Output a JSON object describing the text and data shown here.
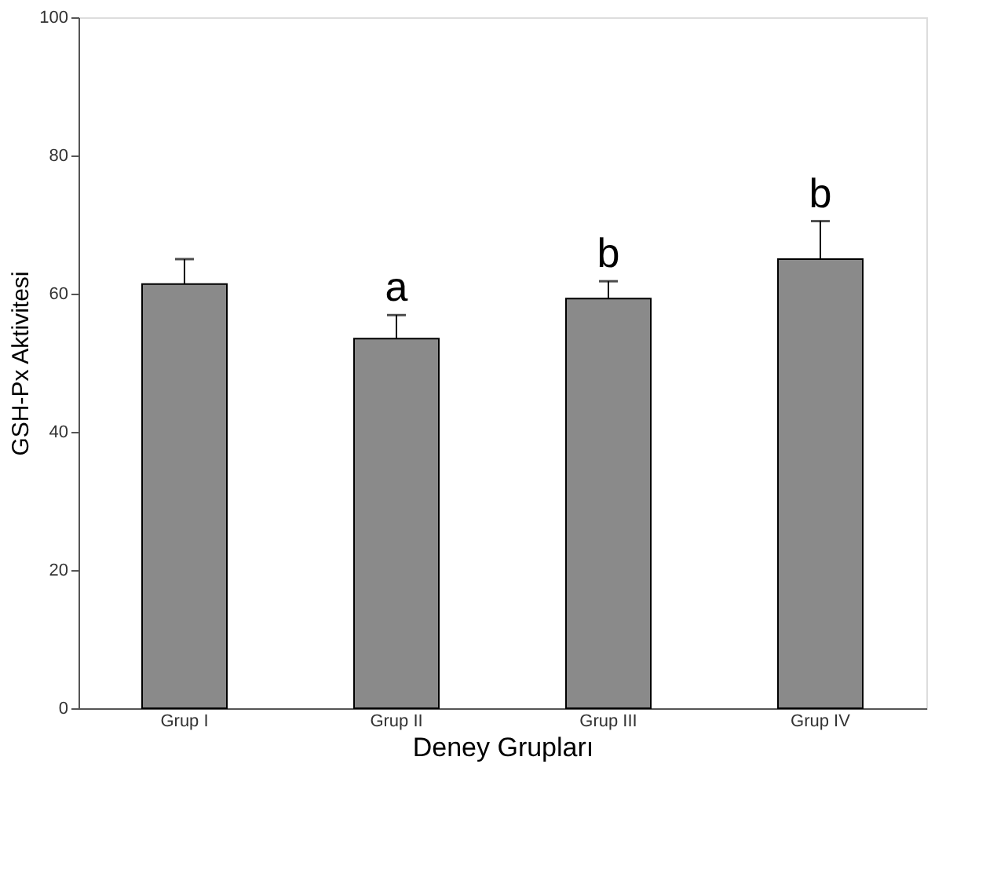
{
  "chart_data": {
    "type": "bar",
    "xlabel": "Deney Grupları",
    "ylabel": "GSH-Px Aktivitesi",
    "categories": [
      "Grup I",
      "Grup II",
      "Grup III",
      "Grup IV"
    ],
    "values": [
      61.4,
      53.5,
      59.3,
      65.0
    ],
    "errors": [
      [
        61.4,
        65.0
      ],
      [
        53.5,
        56.9
      ],
      [
        59.3,
        61.8
      ],
      [
        65.0,
        70.5
      ]
    ],
    "color": "#8a8a8a",
    "ylim": [
      0,
      100
    ],
    "yticks": [
      0,
      20,
      40,
      60,
      80,
      100
    ],
    "grid": false,
    "annotations": [
      {
        "text": "a",
        "x": "Grup II",
        "y": 56.9
      },
      {
        "text": "b",
        "x": "Grup III",
        "y": 61.8
      },
      {
        "text": "b",
        "x": "Grup IV",
        "y": 70.5
      }
    ]
  }
}
